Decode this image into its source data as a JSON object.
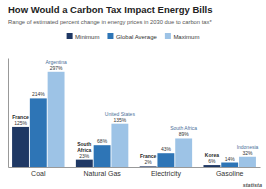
{
  "chart_data": {
    "type": "bar",
    "title": "How Would a Carbon Tax Impact Energy Bills",
    "subtitle": "Range of estimated percent change in energy prices in 2030 due to carbon tax*",
    "categories": [
      "Coal",
      "Natural Gas",
      "Electricity",
      "Gasoline"
    ],
    "series": [
      {
        "name": "Minimum",
        "color": "#1f3864",
        "values": [
          125,
          23,
          2,
          6
        ],
        "value_labels": [
          "125%",
          "23%",
          "2%",
          "6%"
        ],
        "annotations": [
          "France",
          "South\nAfrica",
          "France",
          "Korea"
        ]
      },
      {
        "name": "Global Average",
        "color": "#2e75b6",
        "values": [
          214,
          68,
          43,
          14
        ],
        "value_labels": [
          "214%",
          "68%",
          "43%",
          "14%"
        ]
      },
      {
        "name": "Maximum",
        "color": "#9dc3e6",
        "values": [
          297,
          135,
          89,
          32
        ],
        "value_labels": [
          "297%",
          "135%",
          "89%",
          "32%"
        ],
        "annotations": [
          "Argentina",
          "United States",
          "South Africa",
          "Indonesia"
        ]
      }
    ],
    "ylim": [
      0,
      340
    ],
    "yticks": [],
    "grid": false,
    "data_labels": true,
    "tick_labels": "x",
    "legend": "top",
    "annotations": [
      "statista"
    ]
  }
}
